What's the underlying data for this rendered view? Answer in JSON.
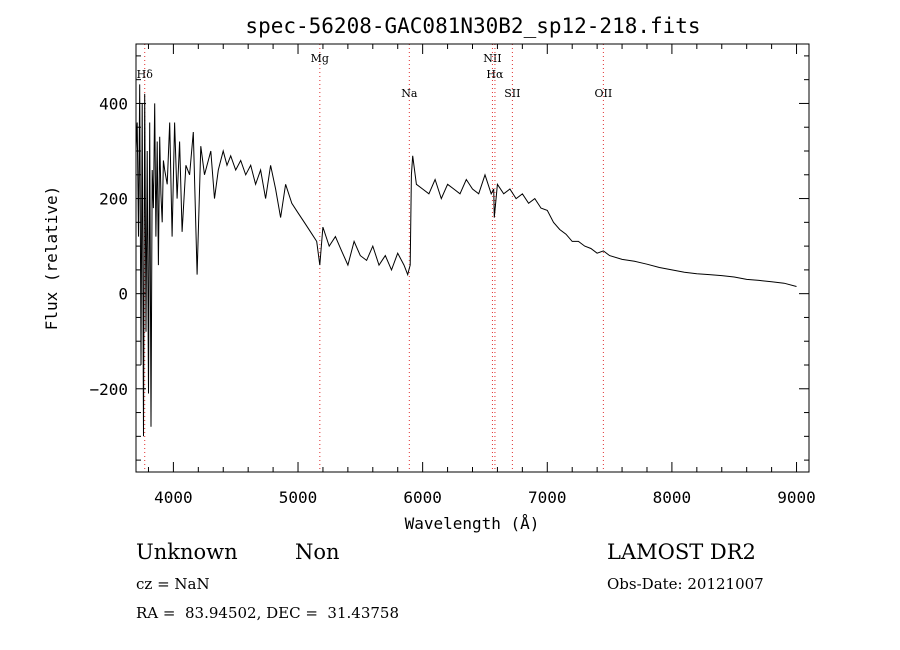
{
  "chart_data": {
    "type": "line",
    "title": "spec-56208-GAC081N30B2_sp12-218.fits",
    "xlabel": "Wavelength (Å)",
    "ylabel": "Flux (relative)",
    "xlim": [
      3700,
      9100
    ],
    "ylim": [
      -375,
      525
    ],
    "xticks": [
      {
        "value": 4000,
        "label": "4000"
      },
      {
        "value": 5000,
        "label": "5000"
      },
      {
        "value": 6000,
        "label": "6000"
      },
      {
        "value": 7000,
        "label": "7000"
      },
      {
        "value": 8000,
        "label": "8000"
      },
      {
        "value": 9000,
        "label": "9000"
      }
    ],
    "yticks": [
      {
        "value": -200,
        "label": "−200"
      },
      {
        "value": 0,
        "label": "0"
      },
      {
        "value": 200,
        "label": "200"
      },
      {
        "value": 400,
        "label": "400"
      }
    ],
    "xminor_step": 200,
    "yminor_step": 50,
    "grid": false,
    "line_color": "#000000",
    "marker_color": "#e03030",
    "lines": [
      {
        "name": "Hδ",
        "wavelength": 3770,
        "label_row": 2
      },
      {
        "name": "Mg",
        "wavelength": 5175,
        "label_row": 1
      },
      {
        "name": "Na",
        "wavelength": 5893,
        "label_row": 3
      },
      {
        "name": "NII",
        "wavelength": 6560,
        "label_row": 1
      },
      {
        "name": "Hα",
        "wavelength": 6580,
        "label_row": 2
      },
      {
        "name": "SII",
        "wavelength": 6720,
        "label_row": 3
      },
      {
        "name": "OII",
        "wavelength": 7450,
        "label_row": 3
      }
    ],
    "series": [
      {
        "x": [
          3700,
          3710,
          3720,
          3730,
          3740,
          3750,
          3760,
          3770,
          3780,
          3790,
          3800,
          3810,
          3820,
          3830,
          3840,
          3850,
          3860,
          3870,
          3880,
          3890,
          3900,
          3910,
          3920,
          3930,
          3950,
          3970,
          3990,
          4010,
          4030,
          4050,
          4070,
          4100,
          4130,
          4160,
          4190,
          4220,
          4250,
          4280,
          4300,
          4330,
          4360,
          4400,
          4430,
          4460,
          4500,
          4540,
          4580,
          4620,
          4660,
          4700,
          4740,
          4780,
          4820,
          4860,
          4900,
          4950,
          5000,
          5050,
          5100,
          5150,
          5175,
          5200,
          5250,
          5300,
          5350,
          5400,
          5450,
          5500,
          5550,
          5600,
          5650,
          5700,
          5750,
          5800,
          5850,
          5880,
          5890,
          5900,
          5910,
          5920,
          5950,
          6000,
          6050,
          6100,
          6150,
          6200,
          6250,
          6300,
          6350,
          6400,
          6450,
          6500,
          6550,
          6570,
          6575,
          6600,
          6650,
          6700,
          6750,
          6800,
          6850,
          6900,
          6950,
          7000,
          7050,
          7100,
          7150,
          7200,
          7250,
          7300,
          7350,
          7400,
          7450,
          7500,
          7600,
          7700,
          7800,
          7900,
          8000,
          8100,
          8200,
          8300,
          8400,
          8500,
          8600,
          8700,
          8800,
          8900,
          9000
        ],
        "y": [
          300,
          360,
          120,
          440,
          -150,
          400,
          -300,
          420,
          -80,
          300,
          -210,
          360,
          -280,
          260,
          180,
          400,
          120,
          320,
          60,
          330,
          210,
          150,
          280,
          260,
          230,
          360,
          120,
          360,
          200,
          320,
          130,
          270,
          250,
          340,
          40,
          310,
          250,
          280,
          300,
          200,
          260,
          300,
          270,
          290,
          260,
          280,
          250,
          270,
          230,
          260,
          200,
          270,
          220,
          160,
          230,
          190,
          170,
          150,
          130,
          110,
          60,
          140,
          100,
          120,
          90,
          60,
          110,
          80,
          70,
          100,
          60,
          80,
          50,
          85,
          60,
          40,
          50,
          60,
          250,
          290,
          230,
          220,
          210,
          240,
          200,
          230,
          220,
          210,
          240,
          220,
          210,
          250,
          210,
          220,
          160,
          230,
          210,
          220,
          200,
          210,
          190,
          200,
          180,
          175,
          150,
          135,
          125,
          110,
          110,
          100,
          95,
          85,
          90,
          80,
          72,
          68,
          62,
          55,
          50,
          45,
          42,
          40,
          38,
          35,
          30,
          28,
          25,
          22,
          15
        ]
      }
    ]
  },
  "info": {
    "class": "Unknown",
    "subclass": "Non",
    "survey": "LAMOST DR2",
    "cz": "cz = NaN",
    "obs_date": "Obs-Date: 20121007",
    "coords": "RA =  83.94502, DEC =  31.43758"
  }
}
